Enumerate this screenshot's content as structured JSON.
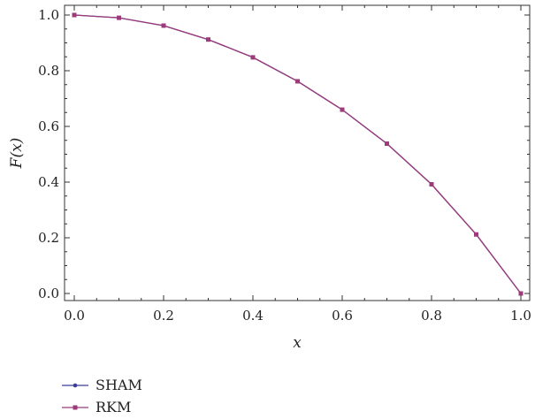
{
  "chart_data": {
    "type": "line",
    "xlabel": "x",
    "ylabel": "F(x)",
    "xlim": [
      0.0,
      1.0
    ],
    "ylim": [
      0.0,
      1.0
    ],
    "xticks": [
      "0.0",
      "0.2",
      "0.4",
      "0.6",
      "0.8",
      "1.0"
    ],
    "yticks": [
      "0.0",
      "0.2",
      "0.4",
      "0.6",
      "0.8",
      "1.0"
    ],
    "grid": false,
    "legend_position": "bottom-left",
    "x": [
      0.0,
      0.1,
      0.2,
      0.3,
      0.4,
      0.5,
      0.6,
      0.7,
      0.8,
      0.9,
      1.0
    ],
    "series": [
      {
        "name": "SHAM",
        "color": "#3b3b9c",
        "marker": "circle",
        "values": [
          1.0,
          0.99,
          0.962,
          0.912,
          0.848,
          0.762,
          0.66,
          0.538,
          0.392,
          0.212,
          0.0
        ]
      },
      {
        "name": "RKM",
        "color": "#9b3b7a",
        "marker": "square",
        "values": [
          1.0,
          0.99,
          0.962,
          0.912,
          0.848,
          0.762,
          0.66,
          0.538,
          0.392,
          0.212,
          0.0
        ]
      }
    ]
  }
}
